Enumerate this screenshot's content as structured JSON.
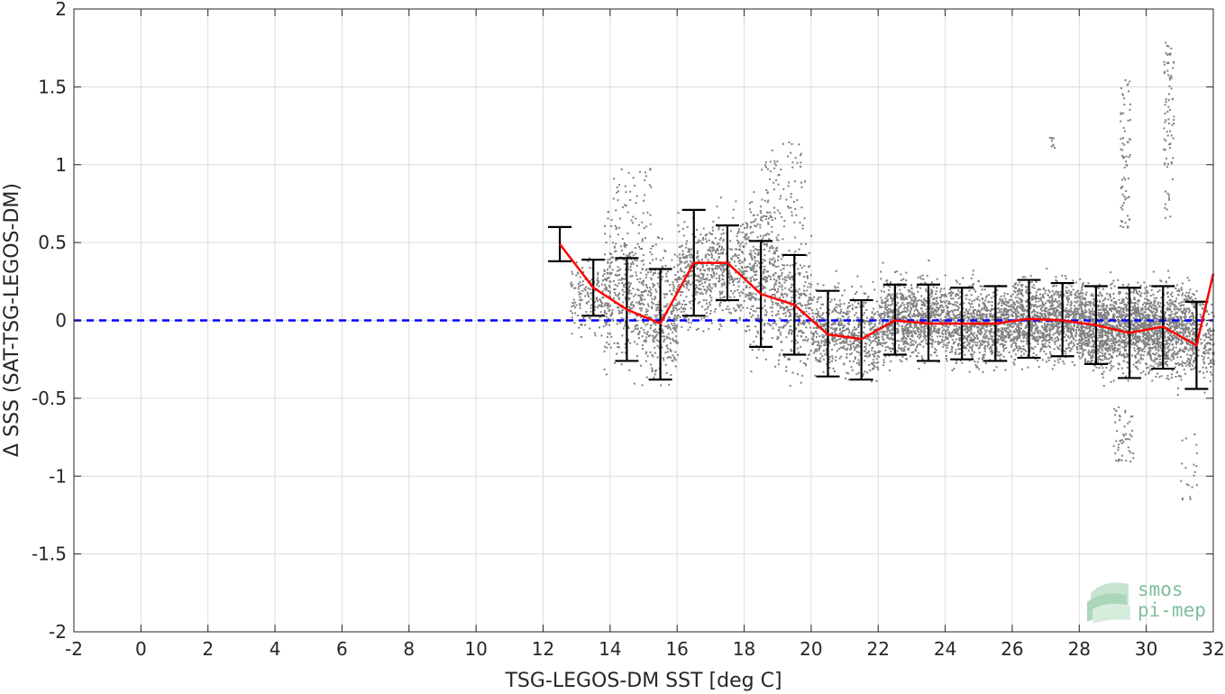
{
  "chart_data": {
    "type": "scatter",
    "title": "",
    "xlabel": "TSG-LEGOS-DM SST [deg C]",
    "ylabel": "Δ SSS (SAT-TSG-LEGOS-DM)",
    "xlim": [
      -2,
      32
    ],
    "ylim": [
      -2,
      2
    ],
    "xticks": [
      -2,
      0,
      2,
      4,
      6,
      8,
      10,
      12,
      14,
      16,
      18,
      20,
      22,
      24,
      26,
      28,
      30,
      32
    ],
    "yticks": [
      2,
      1.5,
      1,
      0.5,
      0,
      -0.5,
      -1,
      -1.5,
      -2
    ],
    "xtick_labels": [
      "-2",
      "0",
      "2",
      "4",
      "6",
      "8",
      "10",
      "12",
      "14",
      "16",
      "18",
      "20",
      "22",
      "24",
      "26",
      "28",
      "30",
      "32"
    ],
    "ytick_labels": [
      "2",
      "1.5",
      "1",
      "0.5",
      "0",
      "-0.5",
      "-1",
      "-1.5",
      "-2"
    ],
    "grid": true,
    "zero_line": {
      "y": 0,
      "color": "#0000ff",
      "style": "dashed"
    },
    "colors": {
      "scatter": "#808080",
      "mean_line": "#ff0000",
      "error_bars": "#000000",
      "zero_line": "#0000ff"
    },
    "binned_stats": {
      "x": [
        12.5,
        13.5,
        14.5,
        15.5,
        16.5,
        17.5,
        18.5,
        19.5,
        20.5,
        21.5,
        22.5,
        23.5,
        24.5,
        25.5,
        26.5,
        27.5,
        28.5,
        29.5,
        30.5,
        31.5,
        32
      ],
      "mean": [
        0.49,
        0.21,
        0.07,
        -0.02,
        0.37,
        0.37,
        0.17,
        0.1,
        -0.09,
        -0.12,
        0.0,
        -0.02,
        -0.02,
        -0.02,
        0.01,
        0.0,
        -0.03,
        -0.08,
        -0.04,
        -0.16,
        0.3
      ],
      "lower": [
        0.38,
        0.03,
        -0.26,
        -0.38,
        0.03,
        0.13,
        -0.17,
        -0.22,
        -0.36,
        -0.38,
        -0.22,
        -0.26,
        -0.25,
        -0.26,
        -0.24,
        -0.23,
        -0.28,
        -0.37,
        -0.31,
        -0.44,
        null
      ],
      "upper": [
        0.6,
        0.39,
        0.4,
        0.33,
        0.71,
        0.61,
        0.51,
        0.42,
        0.19,
        0.13,
        0.23,
        0.23,
        0.21,
        0.22,
        0.26,
        0.24,
        0.22,
        0.21,
        0.22,
        0.12,
        null
      ]
    },
    "scatter_clusters": [
      {
        "x_range": [
          12.8,
          14.0
        ],
        "y_center": 0.15,
        "y_spread": 0.25,
        "n": 180
      },
      {
        "x_range": [
          13.8,
          15.0
        ],
        "y_center": 0.2,
        "y_spread": 0.55,
        "n": 350
      },
      {
        "x_range": [
          15.0,
          16.0
        ],
        "y_center": 0.05,
        "y_spread": 0.45,
        "n": 320
      },
      {
        "x_range": [
          16.0,
          17.0
        ],
        "y_center": 0.3,
        "y_spread": 0.4,
        "n": 300
      },
      {
        "x_range": [
          17.0,
          18.0
        ],
        "y_center": 0.35,
        "y_spread": 0.35,
        "n": 280
      },
      {
        "x_range": [
          18.0,
          19.0
        ],
        "y_center": 0.3,
        "y_spread": 0.55,
        "n": 380
      },
      {
        "x_range": [
          19.0,
          20.0
        ],
        "y_center": 0.1,
        "y_spread": 0.45,
        "n": 300
      },
      {
        "x_range": [
          20.0,
          21.0
        ],
        "y_center": -0.05,
        "y_spread": 0.3,
        "n": 300
      },
      {
        "x_range": [
          21.0,
          22.0
        ],
        "y_center": -0.1,
        "y_spread": 0.3,
        "n": 300
      },
      {
        "x_range": [
          22.0,
          24.0
        ],
        "y_center": 0.02,
        "y_spread": 0.28,
        "n": 900
      },
      {
        "x_range": [
          24.0,
          26.0
        ],
        "y_center": -0.02,
        "y_spread": 0.28,
        "n": 900
      },
      {
        "x_range": [
          26.0,
          28.0
        ],
        "y_center": 0.01,
        "y_spread": 0.28,
        "n": 1000
      },
      {
        "x_range": [
          28.0,
          30.0
        ],
        "y_center": -0.04,
        "y_spread": 0.3,
        "n": 1300
      },
      {
        "x_range": [
          30.0,
          31.5
        ],
        "y_center": -0.05,
        "y_spread": 0.32,
        "n": 900
      },
      {
        "x_range": [
          31.5,
          32.0
        ],
        "y_center": -0.15,
        "y_spread": 0.3,
        "n": 120
      }
    ],
    "scatter_outliers": [
      {
        "x_range": [
          29.2,
          29.5
        ],
        "y_range": [
          0.6,
          1.57
        ],
        "n": 70
      },
      {
        "x_range": [
          30.5,
          30.8
        ],
        "y_range": [
          0.6,
          1.79
        ],
        "n": 80
      },
      {
        "x_range": [
          27.1,
          27.3
        ],
        "y_range": [
          1.1,
          1.18
        ],
        "n": 10
      },
      {
        "x_range": [
          18.6,
          19.8
        ],
        "y_range": [
          0.6,
          1.15
        ],
        "n": 70
      },
      {
        "x_range": [
          14.0,
          15.2
        ],
        "y_range": [
          0.6,
          0.98
        ],
        "n": 35
      },
      {
        "x_range": [
          29.0,
          29.6
        ],
        "y_range": [
          -0.9,
          -0.55
        ],
        "n": 50
      },
      {
        "x_range": [
          31.0,
          31.5
        ],
        "y_range": [
          -1.15,
          -0.7
        ],
        "n": 20
      }
    ]
  },
  "logo": {
    "line1": "smos",
    "line2": "pi-mep"
  }
}
